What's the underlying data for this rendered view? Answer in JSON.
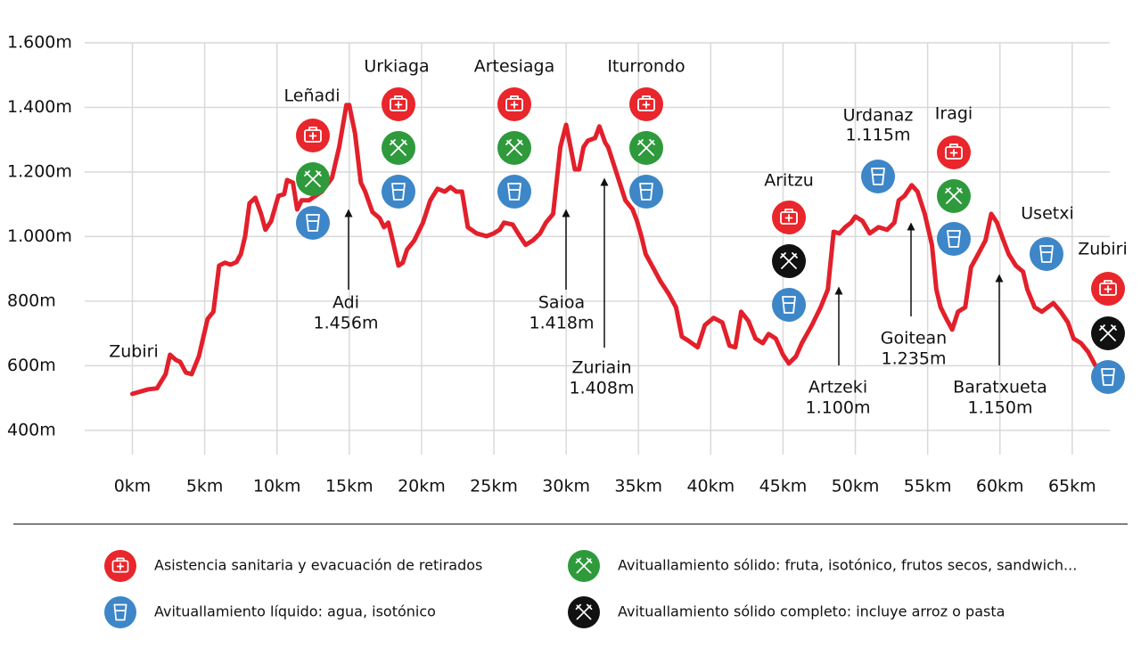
{
  "chart_data": {
    "type": "line",
    "x": [
      0,
      1.1,
      1.7,
      2.3,
      2.6,
      3.0,
      3.3,
      3.7,
      4.1,
      4.6,
      5.2,
      5.6,
      6.0,
      6.4,
      6.8,
      7.2,
      7.5,
      7.8,
      8.1,
      8.5,
      8.9,
      9.2,
      9.6,
      10.1,
      10.5,
      10.7,
      11.1,
      11.4,
      11.7,
      12.2,
      13.1,
      13.8,
      14.3,
      14.8,
      15.0,
      15.4,
      15.8,
      16.1,
      16.6,
      17.1,
      17.4,
      17.7,
      18.0,
      18.4,
      18.7,
      19.0,
      19.5,
      20.1,
      20.6,
      21.1,
      21.6,
      22.0,
      22.4,
      22.8,
      23.2,
      23.8,
      24.5,
      25.0,
      25.4,
      25.7,
      26.3,
      26.8,
      27.2,
      27.7,
      28.2,
      28.6,
      29.1,
      29.6,
      30.0,
      30.3,
      30.6,
      30.9,
      31.2,
      31.5,
      32.0,
      32.3,
      32.7,
      32.9,
      33.3,
      33.7,
      34.1,
      34.6,
      34.9,
      35.2,
      35.5,
      36.0,
      36.5,
      37.1,
      37.6,
      38.0,
      38.4,
      39.1,
      39.6,
      40.2,
      40.8,
      41.3,
      41.7,
      42.1,
      42.6,
      43.1,
      43.6,
      44.0,
      44.5,
      45.0,
      45.4,
      45.9,
      46.3,
      47.0,
      47.6,
      48.1,
      48.5,
      48.9,
      49.3,
      49.7,
      50.0,
      50.5,
      51.0,
      51.6,
      52.2,
      52.7,
      53.0,
      53.4,
      53.9,
      54.3,
      54.8,
      55.3,
      55.6,
      55.9,
      56.3,
      56.7,
      57.1,
      57.6,
      58.0,
      58.5,
      59.0,
      59.4,
      59.8,
      60.2,
      60.6,
      61.1,
      61.6,
      61.9,
      62.4,
      62.9,
      63.3,
      63.7,
      64.2,
      64.7,
      65.1,
      65.6,
      66.1,
      66.6
    ],
    "values": [
      513,
      527,
      530,
      574,
      634,
      618,
      612,
      579,
      574,
      629,
      745,
      767,
      910,
      919,
      913,
      921,
      946,
      1001,
      1103,
      1120,
      1070,
      1021,
      1048,
      1126,
      1131,
      1175,
      1167,
      1084,
      1112,
      1112,
      1139,
      1181,
      1277,
      1407,
      1407,
      1319,
      1167,
      1139,
      1076,
      1057,
      1029,
      1043,
      988,
      910,
      919,
      960,
      988,
      1043,
      1112,
      1148,
      1139,
      1153,
      1139,
      1139,
      1029,
      1010,
      1001,
      1010,
      1021,
      1043,
      1037,
      1001,
      974,
      988,
      1010,
      1043,
      1070,
      1277,
      1346,
      1277,
      1208,
      1208,
      1277,
      1297,
      1305,
      1341,
      1291,
      1277,
      1222,
      1167,
      1112,
      1084,
      1048,
      1001,
      946,
      905,
      863,
      822,
      781,
      690,
      679,
      657,
      726,
      748,
      734,
      662,
      657,
      767,
      739,
      684,
      670,
      698,
      684,
      634,
      607,
      629,
      670,
      726,
      781,
      836,
      1015,
      1010,
      1029,
      1043,
      1062,
      1048,
      1010,
      1029,
      1021,
      1043,
      1112,
      1126,
      1159,
      1139,
      1070,
      974,
      836,
      781,
      745,
      712,
      767,
      781,
      905,
      946,
      988,
      1070,
      1043,
      993,
      946,
      910,
      891,
      836,
      781,
      767,
      781,
      794,
      767,
      734,
      684,
      670,
      643,
      601
    ],
    "color": "#e2202b",
    "xlim": [
      -3.3,
      67.6
    ],
    "ylim": [
      325,
      1600
    ],
    "xticks": [
      {
        "value": 0,
        "label": "0km"
      },
      {
        "value": 5,
        "label": "5km"
      },
      {
        "value": 10,
        "label": "10km"
      },
      {
        "value": 15,
        "label": "15km"
      },
      {
        "value": 20,
        "label": "20km"
      },
      {
        "value": 25,
        "label": "25km"
      },
      {
        "value": 30,
        "label": "30km"
      },
      {
        "value": 35,
        "label": "35km"
      },
      {
        "value": 40,
        "label": "40km"
      },
      {
        "value": 45,
        "label": "45km"
      },
      {
        "value": 50,
        "label": "50km"
      },
      {
        "value": 55,
        "label": "55km"
      },
      {
        "value": 60,
        "label": "60km"
      },
      {
        "value": 65,
        "label": "65km"
      }
    ],
    "yticks": [
      {
        "value": 400,
        "label": "400m"
      },
      {
        "value": 600,
        "label": "600m"
      },
      {
        "value": 800,
        "label": "800m"
      },
      {
        "value": 1000,
        "label": "1.000m"
      },
      {
        "value": 1200,
        "label": "1.200m"
      },
      {
        "value": 1400,
        "label": "1.400m"
      },
      {
        "value": 1600,
        "label": "1.600m"
      }
    ],
    "grid": true,
    "stations": [
      {
        "name": "Zubiri"
      },
      {
        "name": "Leñadi"
      },
      {
        "name": "Urkiaga"
      },
      {
        "name": "Artesiaga"
      },
      {
        "name": "Iturrondo"
      },
      {
        "name": "Aritzu"
      },
      {
        "name": "Urdanaz",
        "elevation": "1.115m"
      },
      {
        "name": "Iragi"
      },
      {
        "name": "Usetxi"
      },
      {
        "name": "Zubiri"
      }
    ],
    "peaks": [
      {
        "name": "Adi",
        "elevation": "1.456m"
      },
      {
        "name": "Saioa",
        "elevation": "1.418m"
      },
      {
        "name": "Zuriain",
        "elevation": "1.408m"
      },
      {
        "name": "Artzeki",
        "elevation": "1.100m"
      },
      {
        "name": "Goitean",
        "elevation": "1.235m"
      },
      {
        "name": "Baratxueta",
        "elevation": "1.150m"
      }
    ],
    "legend": [
      {
        "label": "Asistencia sanitaria y evacuación de retirados",
        "color": "#e8262b"
      },
      {
        "label": "Avituallamiento líquido: agua, isotónico",
        "color": "#3d86c8"
      },
      {
        "label": "Avituallamiento sólido: fruta, isotónico, frutos secos, sandwich...",
        "color": "#2e9a3c"
      },
      {
        "label": "Avituallamiento sólido completo: incluye arroz o pasta",
        "color": "#111111"
      }
    ]
  }
}
